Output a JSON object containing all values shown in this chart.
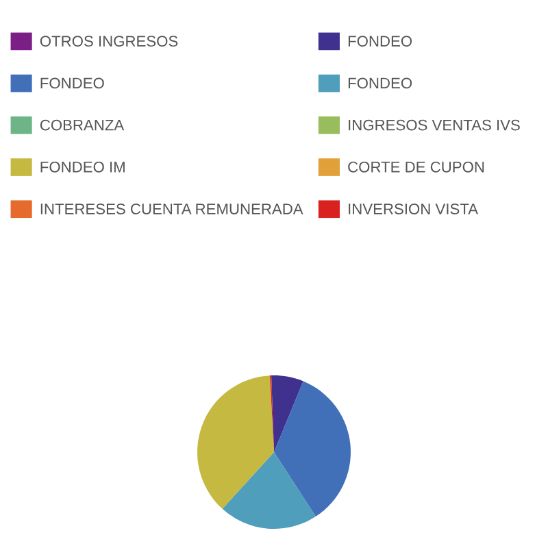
{
  "chart_data": {
    "type": "pie",
    "categories": [
      "OTROS INGRESOS",
      "FONDEO",
      "FONDEO",
      "FONDEO",
      "COBRANZA",
      "INGRESOS VENTAS IVS",
      "FONDEO IM",
      "CORTE DE CUPON",
      "INTERESES CUENTA REMUNERADA",
      "INVERSION VISTA"
    ],
    "values": [
      0,
      6.8,
      34.6,
      20.9,
      0,
      0,
      37.4,
      0,
      0,
      0.3
    ],
    "colors": [
      "#7b1f86",
      "#40318f",
      "#4270b8",
      "#4f9ebb",
      "#6db586",
      "#98bd5c",
      "#c5b942",
      "#e2a03a",
      "#e56a2c",
      "#d9221f"
    ],
    "legend": "top left"
  }
}
